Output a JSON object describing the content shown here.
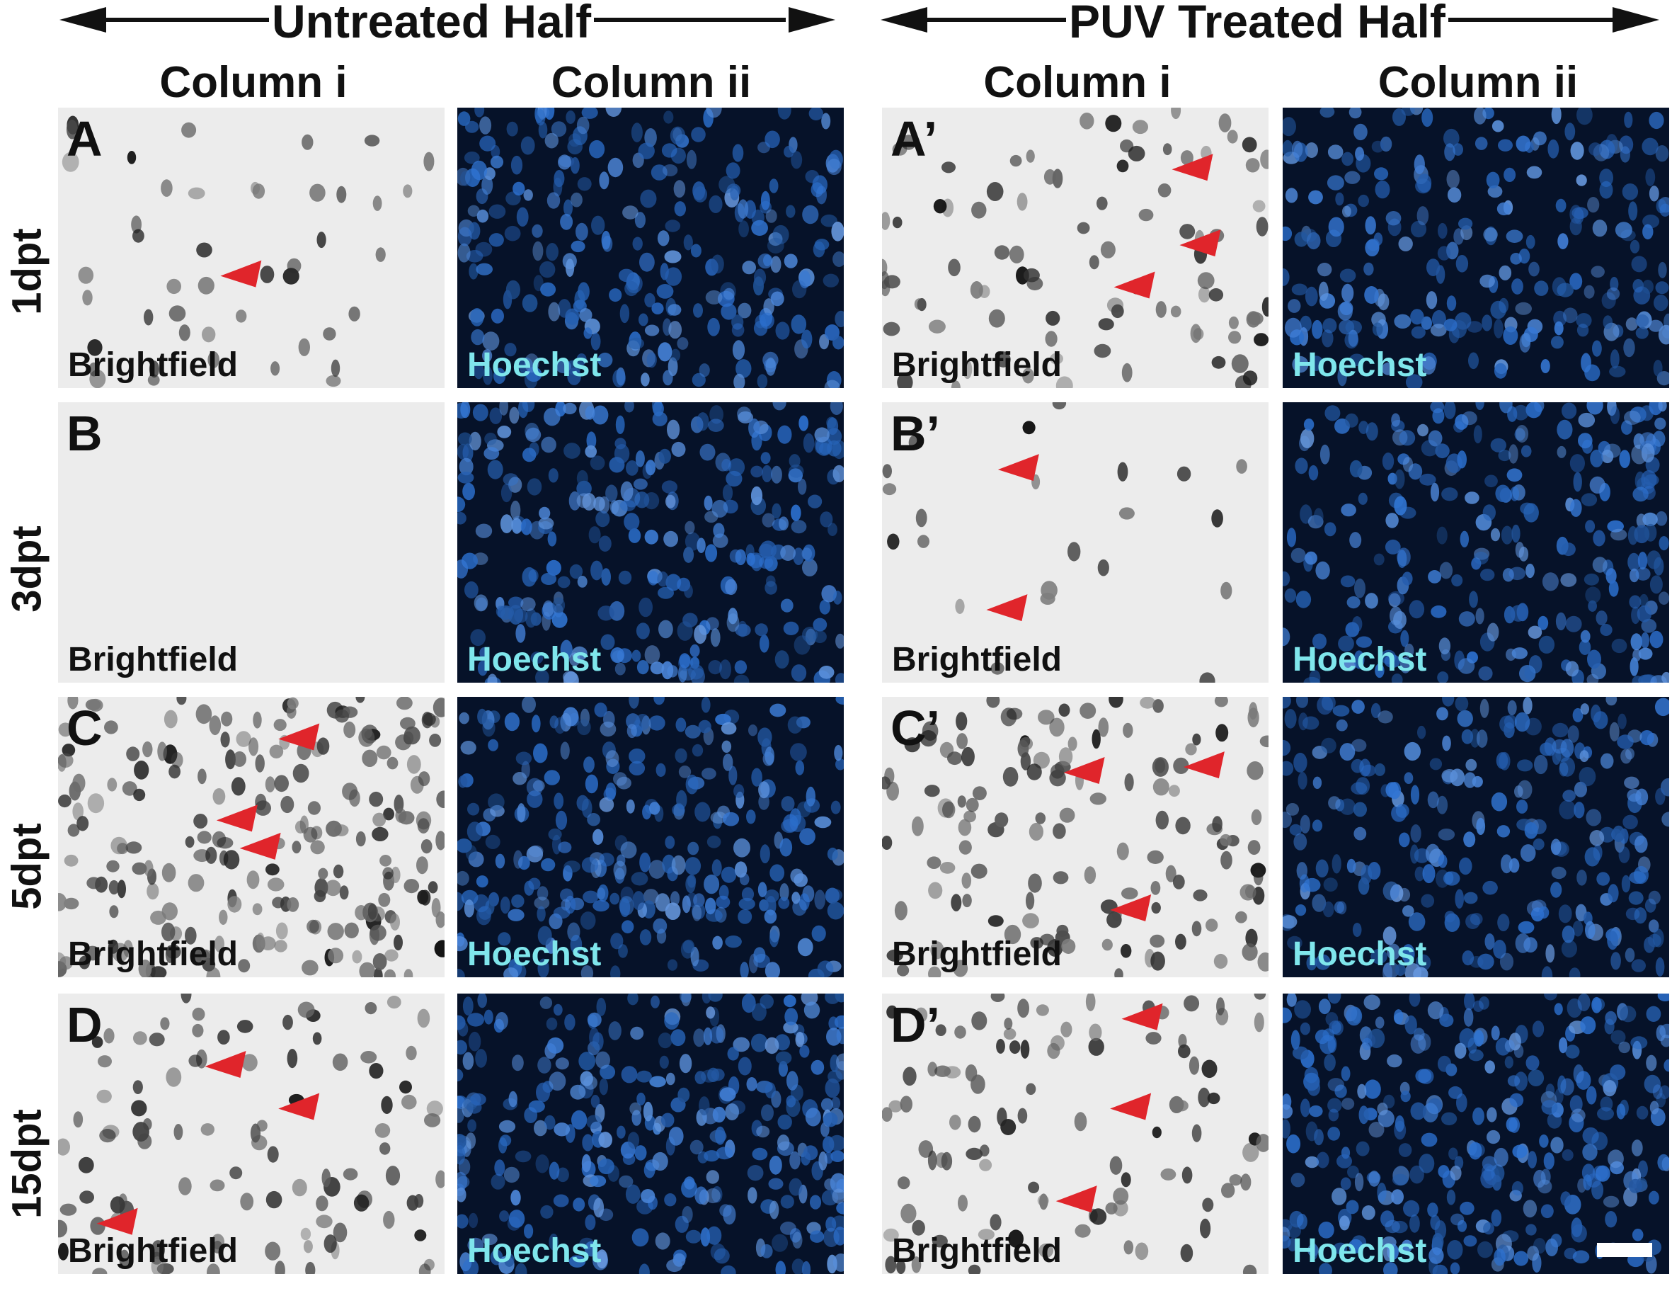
{
  "headers": {
    "untreated_half": "Untreated Half",
    "treated_half": "PUV Treated Half",
    "column_i": "Column i",
    "column_ii": "Column ii"
  },
  "rows": [
    {
      "label": "1dpt",
      "untreated_letter": "A",
      "treated_letter": "A’"
    },
    {
      "label": "3dpt",
      "untreated_letter": "B",
      "treated_letter": "B’"
    },
    {
      "label": "5dpt",
      "untreated_letter": "C",
      "treated_letter": "C’"
    },
    {
      "label": "15dpt",
      "untreated_letter": "D",
      "treated_letter": "D’"
    }
  ],
  "channels": {
    "brightfield": "Brightfield",
    "hoechst": "Hoechst"
  },
  "colors": {
    "arrowhead": "#e0252b",
    "hoechst_label": "#7fe6ec",
    "fluorescence_background": "#061229",
    "fluorescence_nuclei": "#3f78c8",
    "brightfield_background": "#ececec"
  }
}
